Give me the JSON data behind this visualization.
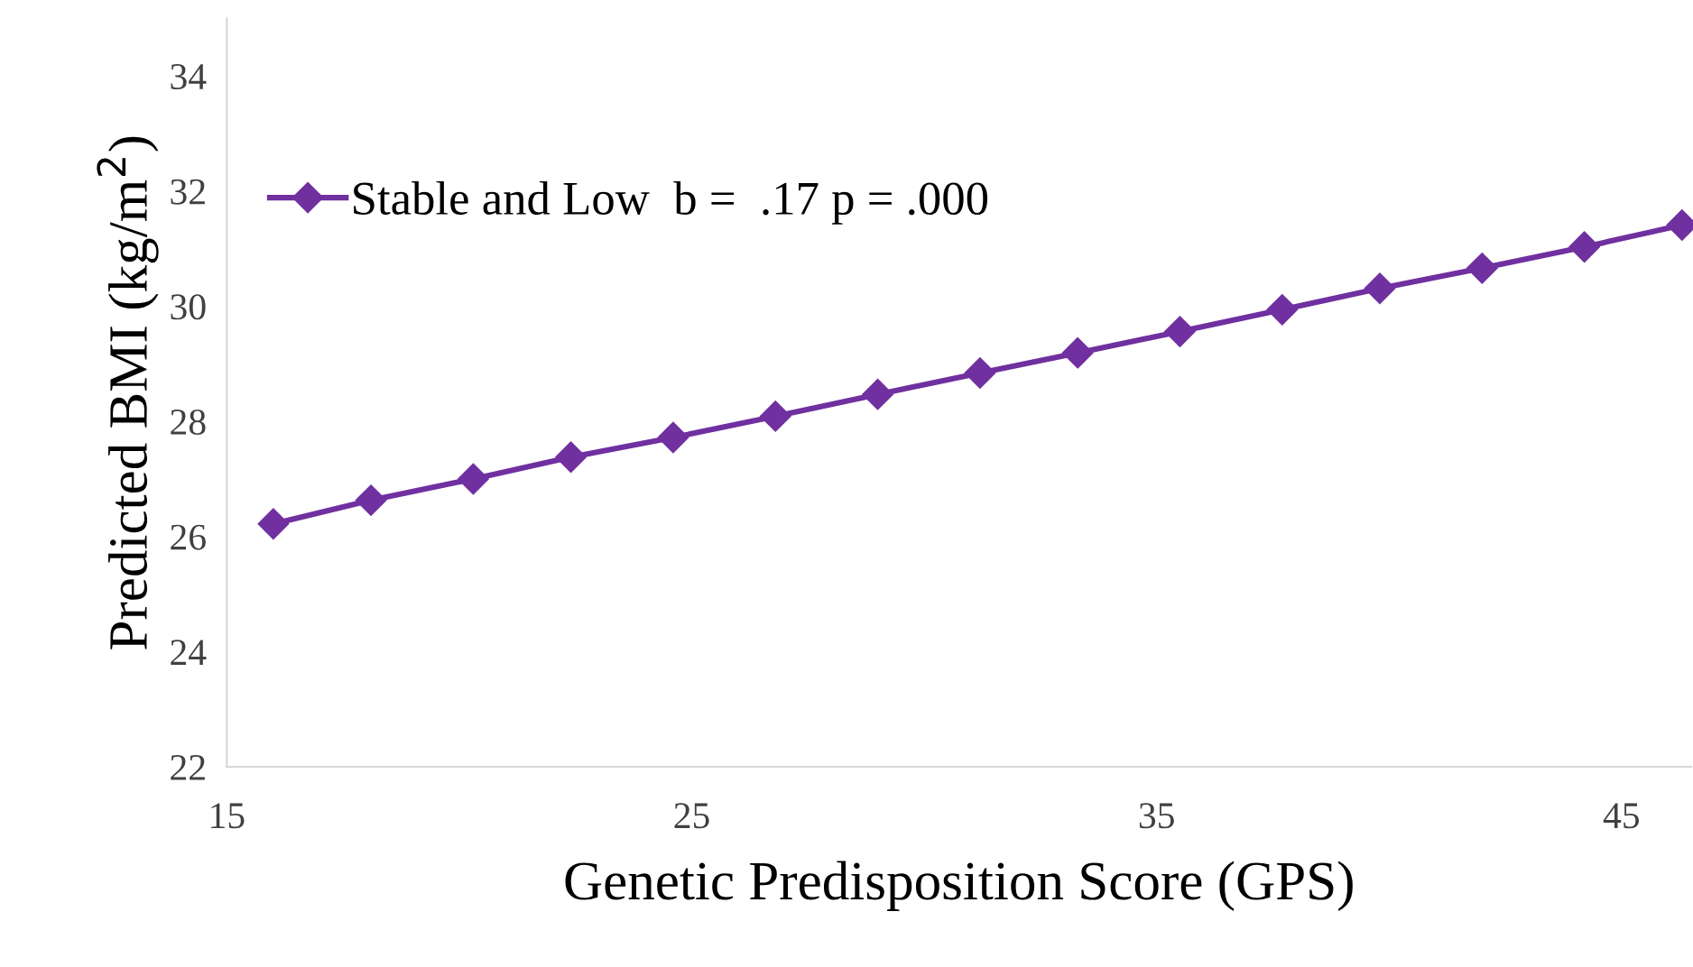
{
  "chart_data": {
    "type": "line",
    "xlabel": "Genetic Predisposition Score (GPS)",
    "ylabel": "Predicted BMI (kg/m$^{2}$)",
    "x": [
      16.0,
      18.1,
      20.3,
      22.4,
      24.6,
      26.8,
      29.0,
      31.2,
      33.3,
      35.5,
      37.7,
      39.8,
      42.0,
      44.2,
      46.3
    ],
    "series": [
      {
        "name": "Stable and Low  b =  .17 p = .000",
        "color": "#7030a0",
        "values": [
          26.22,
          26.63,
          27.0,
          27.38,
          27.72,
          28.09,
          28.47,
          28.84,
          29.19,
          29.56,
          29.94,
          30.31,
          30.66,
          31.03,
          31.41
        ]
      }
    ],
    "xlim": [
      15,
      46.5
    ],
    "xticks": [
      15,
      25,
      35,
      45
    ],
    "ylim": [
      22,
      35
    ],
    "yticks": [
      22,
      24,
      26,
      28,
      30,
      32,
      34
    ],
    "marker": "diamond",
    "line_style": "solid",
    "legend": "top left",
    "grid": false
  }
}
